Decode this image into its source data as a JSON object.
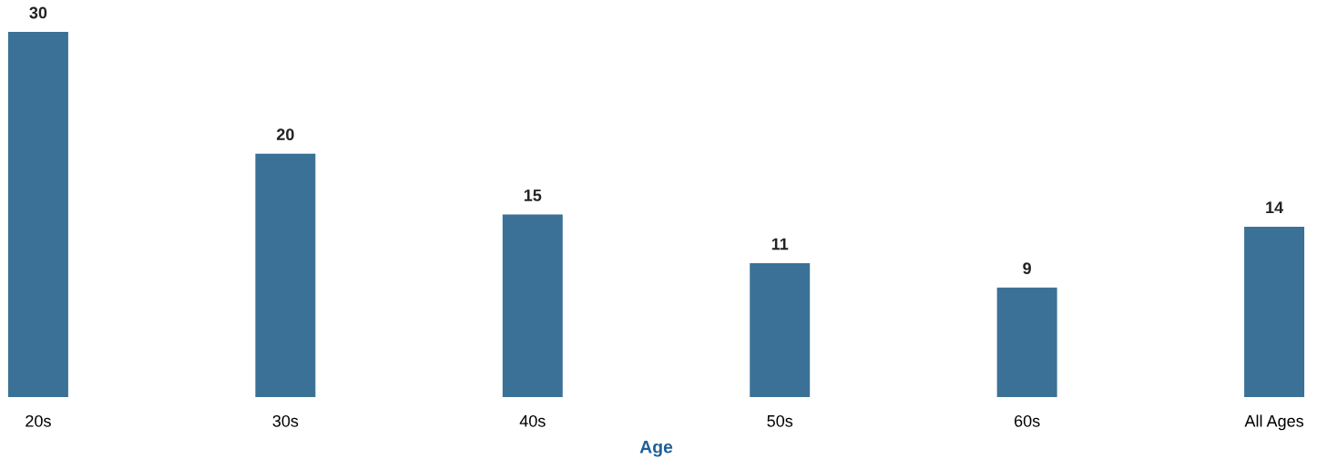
{
  "chart_data": {
    "type": "bar",
    "xlabel": "Age",
    "categories": [
      "20s",
      "30s",
      "40s",
      "50s",
      "60s",
      "All Ages"
    ],
    "values": [
      30,
      20,
      15,
      11,
      9,
      14
    ],
    "color": "#3b7196",
    "tick_labels": "x",
    "data_labels": true,
    "grid": false,
    "legend": false
  }
}
